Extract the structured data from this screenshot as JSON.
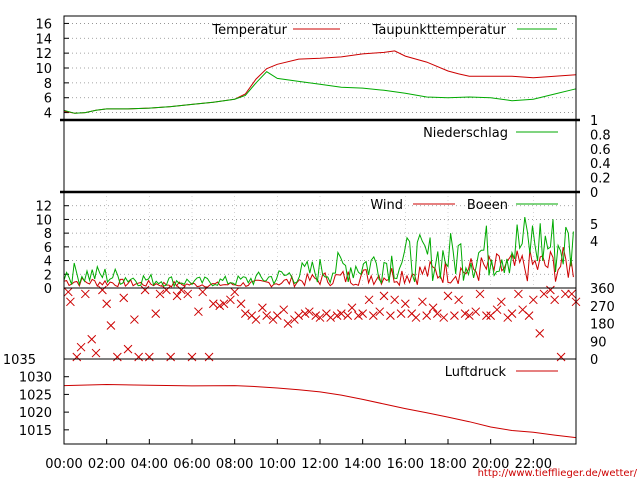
{
  "chart_data": {
    "type": "line",
    "x_ticks": [
      "00:00",
      "02:00",
      "04:00",
      "06:00",
      "08:00",
      "10:00",
      "12:00",
      "14:00",
      "16:00",
      "18:00",
      "20:00",
      "22:00"
    ],
    "x_range_hours": [
      0,
      24
    ],
    "credit": "http://www.tiefflieger.de/wetter/",
    "panels": [
      {
        "id": "temperature",
        "type": "line",
        "ylim": [
          3,
          17
        ],
        "left_ticks": [
          4,
          6,
          8,
          10,
          12,
          14,
          16
        ],
        "grid": true,
        "legend_position": "top-right",
        "series": [
          {
            "name": "Temperatur",
            "color": "#cc0000",
            "x": [
              0,
              0.5,
              1,
              1.5,
              2,
              3,
              4,
              5,
              6,
              7,
              8,
              8.5,
              9,
              9.5,
              10,
              11,
              12,
              13,
              14,
              15,
              15.5,
              16,
              17,
              18,
              18.5,
              19,
              20,
              21,
              22,
              23,
              24
            ],
            "y": [
              4.2,
              3.9,
              4.0,
              4.3,
              4.5,
              4.5,
              4.6,
              4.8,
              5.1,
              5.4,
              5.8,
              6.5,
              8.5,
              9.9,
              10.5,
              11.2,
              11.3,
              11.5,
              11.9,
              12.1,
              12.3,
              11.6,
              10.8,
              9.6,
              9.2,
              8.9,
              8.9,
              8.9,
              8.7,
              8.9,
              9.1
            ]
          },
          {
            "name": "Taupunkttemperatur",
            "color": "#00aa00",
            "x": [
              0,
              0.5,
              1,
              1.5,
              2,
              3,
              4,
              5,
              6,
              7,
              8,
              8.5,
              9,
              9.5,
              10,
              11,
              12,
              13,
              14,
              15,
              16,
              17,
              18,
              19,
              20,
              21,
              22,
              23,
              24
            ],
            "y": [
              4.3,
              3.9,
              4.0,
              4.3,
              4.5,
              4.5,
              4.6,
              4.8,
              5.1,
              5.4,
              5.8,
              6.3,
              8.0,
              9.5,
              8.6,
              8.2,
              7.8,
              7.4,
              7.3,
              7.0,
              6.6,
              6.1,
              6.0,
              6.1,
              6.0,
              5.6,
              5.8,
              6.5,
              7.2
            ]
          }
        ]
      },
      {
        "id": "precipitation",
        "type": "line",
        "ylim": [
          0,
          1
        ],
        "right_ticks": [
          "1",
          "0.8",
          "0.6",
          "0.4",
          "0.2",
          "0"
        ],
        "grid": false,
        "legend_position": "top-right",
        "series": [
          {
            "name": "Niederschlag",
            "color": "#00aa00",
            "x": [
              0,
              24
            ],
            "y": [
              0,
              0
            ]
          }
        ]
      },
      {
        "id": "wind",
        "type": "line",
        "ylim": [
          0,
          14
        ],
        "left_ticks": [
          0,
          2,
          4,
          6,
          8,
          10,
          12
        ],
        "right_ticks": [
          4,
          5
        ],
        "grid": true,
        "legend_position": "top-right",
        "series": [
          {
            "name": "Wind",
            "color": "#cc0000",
            "x": [
              0,
              2,
              4,
              6,
              8,
              10,
              12,
              14,
              16,
              18,
              20,
              22,
              24
            ],
            "y": [
              1.0,
              0.8,
              0.6,
              0.5,
              0.5,
              0.8,
              1.3,
              1.7,
              2.1,
              2.4,
              2.8,
              3.2,
              3.4
            ]
          },
          {
            "name": "Boeen",
            "color": "#00aa00",
            "x": [
              0,
              2,
              4,
              6,
              8,
              10,
              12,
              14,
              16,
              18,
              20,
              22,
              24
            ],
            "y": [
              2.2,
              1.8,
              1.2,
              0.9,
              1.0,
              1.6,
              2.6,
              3.4,
              4.2,
              4.6,
              5.4,
              6.6,
              6.0
            ]
          }
        ]
      },
      {
        "id": "wind_direction",
        "type": "scatter",
        "ylim": [
          0,
          360
        ],
        "right_ticks": [
          360,
          270,
          180,
          90,
          0
        ],
        "grid": false,
        "series": [
          {
            "color": "#cc0000",
            "x": [
              0.2,
              0.3,
              0.6,
              0.8,
              1.0,
              1.3,
              1.5,
              1.8,
              2.0,
              2.2,
              2.5,
              2.8,
              3.0,
              3.3,
              3.5,
              3.8,
              4.0,
              4.3,
              4.5,
              4.8,
              5.0,
              5.3,
              5.5,
              5.8,
              6.0,
              6.3,
              6.5,
              6.8,
              7.0,
              7.3,
              7.5,
              7.8,
              8.0,
              8.3,
              8.5,
              8.8,
              9.0,
              9.3,
              9.5,
              9.8,
              10.0,
              10.3,
              10.5,
              10.8,
              11.0,
              11.3,
              11.5,
              11.8,
              12.0,
              12.3,
              12.5,
              12.8,
              13.0,
              13.3,
              13.5,
              13.8,
              14.0,
              14.3,
              14.5,
              14.8,
              15.0,
              15.3,
              15.5,
              15.8,
              16.0,
              16.3,
              16.5,
              16.8,
              17.0,
              17.3,
              17.5,
              17.8,
              18.0,
              18.3,
              18.5,
              18.8,
              19.0,
              19.3,
              19.5,
              19.8,
              20.0,
              20.3,
              20.5,
              20.8,
              21.0,
              21.3,
              21.5,
              21.8,
              22.0,
              22.3,
              22.5,
              22.8,
              23.0,
              23.3,
              23.5,
              23.8,
              24.0
            ],
            "y": [
              340,
              290,
              10,
              60,
              330,
              100,
              30,
              350,
              280,
              170,
              10,
              310,
              50,
              200,
              10,
              350,
              10,
              230,
              330,
              350,
              10,
              320,
              350,
              330,
              10,
              240,
              340,
              10,
              280,
              270,
              280,
              300,
              340,
              280,
              230,
              220,
              200,
              260,
              220,
              200,
              220,
              250,
              180,
              200,
              220,
              230,
              240,
              220,
              210,
              230,
              210,
              220,
              230,
              220,
              260,
              220,
              230,
              300,
              220,
              240,
              320,
              220,
              300,
              230,
              280,
              230,
              210,
              290,
              220,
              260,
              230,
              210,
              320,
              220,
              300,
              230,
              220,
              240,
              330,
              220,
              220,
              250,
              290,
              210,
              230,
              330,
              250,
              220,
              300,
              130,
              330,
              350,
              300,
              10,
              330,
              330,
              290
            ]
          }
        ]
      },
      {
        "id": "pressure",
        "type": "line",
        "ylim": [
          1011,
          1035
        ],
        "left_ticks": [
          1015,
          1020,
          1025,
          1030,
          1035
        ],
        "grid": false,
        "legend_position": "top-right",
        "series": [
          {
            "name": "Luftdruck",
            "color": "#cc0000",
            "x": [
              0,
              2,
              4,
              6,
              8,
              9,
              10,
              11,
              12,
              13,
              14,
              15,
              16,
              17,
              18,
              19,
              20,
              21,
              22,
              23,
              24
            ],
            "y": [
              1027.5,
              1027.8,
              1027.6,
              1027.4,
              1027.5,
              1027.2,
              1026.8,
              1026.3,
              1025.7,
              1024.8,
              1023.6,
              1022.3,
              1021.0,
              1019.8,
              1018.6,
              1017.3,
              1015.8,
              1014.8,
              1014.3,
              1013.5,
              1012.8
            ]
          }
        ]
      }
    ]
  }
}
